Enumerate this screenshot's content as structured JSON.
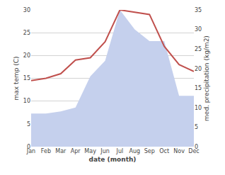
{
  "chart_data": {
    "type": "line",
    "categories": [
      "Jan",
      "Feb",
      "Mar",
      "Apr",
      "May",
      "Jun",
      "Jul",
      "Aug",
      "Sep",
      "Oct",
      "Nov",
      "Dec"
    ],
    "series": [
      {
        "type": "area",
        "color": "#c5d0ed",
        "axis": "y2",
        "values": [
          8.5,
          8.5,
          9.0,
          10.0,
          18.0,
          22.0,
          35.0,
          30.0,
          27.0,
          27.0,
          13.0,
          13.0
        ]
      },
      {
        "type": "line",
        "color": "#c0504d",
        "values": [
          14.5,
          15.0,
          16.0,
          19.0,
          19.5,
          23.0,
          30.0,
          29.5,
          29.0,
          22.0,
          18.0,
          16.5
        ]
      }
    ],
    "xlabel": "date (month)",
    "ylabel": "max temp (C)",
    "y2label": "med. precipitation (kg/m2)",
    "ylim": [
      0,
      30
    ],
    "yticks": [
      0,
      5,
      10,
      15,
      20,
      25,
      30
    ],
    "y2lim": [
      0,
      35
    ],
    "y2ticks": [
      0,
      5,
      10,
      15,
      20,
      25,
      30,
      35
    ],
    "grid": true
  }
}
